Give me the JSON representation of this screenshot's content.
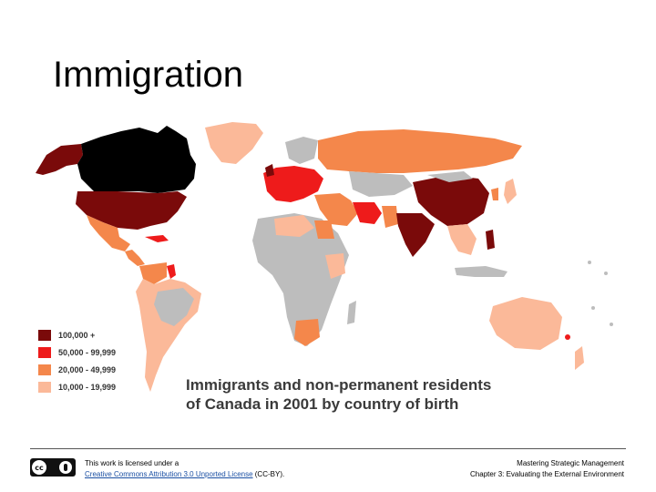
{
  "slide": {
    "title": "Immigration"
  },
  "map": {
    "caption_line1": "Immigrants and non-permanent residents",
    "caption_line2": "of Canada in 2001 by country of birth",
    "colors": {
      "canada": "#000000",
      "tier1": "#7a0a0a",
      "tier2": "#ee1b1b",
      "tier3": "#f4874b",
      "tier4": "#fbb999",
      "no_data": "#bdbdbd",
      "ocean": "#ffffff"
    },
    "legend": [
      {
        "label": "100,000 +",
        "color": "#7a0a0a"
      },
      {
        "label": "50,000 - 99,999",
        "color": "#ee1b1b"
      },
      {
        "label": "20,000 - 49,999",
        "color": "#f4874b"
      },
      {
        "label": "10,000 - 19,999",
        "color": "#fbb999"
      }
    ]
  },
  "footer": {
    "license_prefix": "This work is licensed under a",
    "license_link": "Creative Commons Attribution 3.0 Unported License",
    "license_suffix": " (CC-BY).",
    "course_line1": "Mastering Strategic Management",
    "course_line2": "Chapter 3: Evaluating the External Environment",
    "cc_badge_text": "cc"
  }
}
